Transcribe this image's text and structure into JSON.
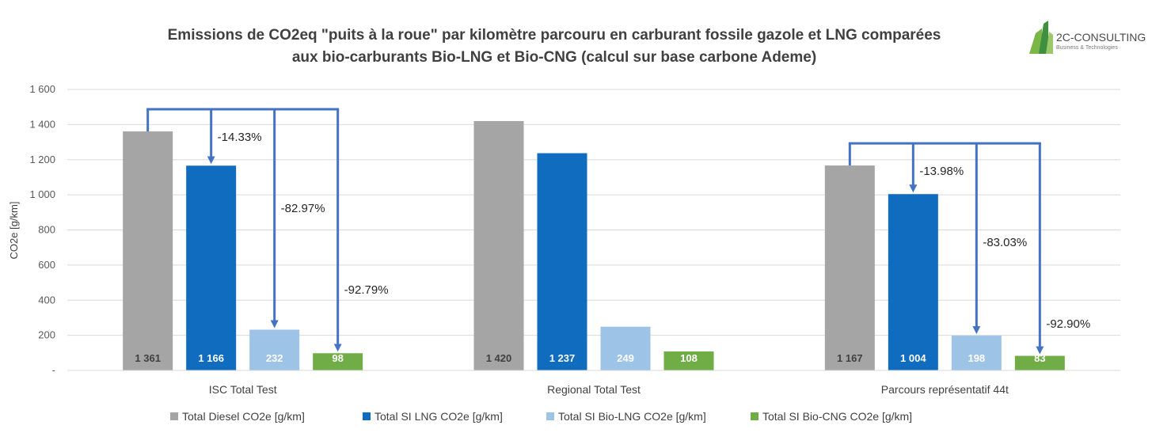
{
  "logo": {
    "name": "2C-CONSULTING",
    "tagline": "Business & Technologies"
  },
  "chart_data": {
    "type": "bar",
    "title_lines": [
      "Emissions de CO2eq \"puits à la roue\" par kilomètre parcouru en carburant fossile gazole et LNG comparées",
      "aux bio-carburants Bio-LNG et Bio-CNG  (calcul sur base carbone Ademe)"
    ],
    "xlabel": "",
    "ylabel": "CO2e [g/km]",
    "ylim": [
      0,
      1600
    ],
    "yticks": [
      {
        "value": 0,
        "label": "-"
      },
      {
        "value": 200,
        "label": "200"
      },
      {
        "value": 400,
        "label": "400"
      },
      {
        "value": 600,
        "label": "600"
      },
      {
        "value": 800,
        "label": "800"
      },
      {
        "value": 1000,
        "label": "1 000"
      },
      {
        "value": 1200,
        "label": "1 200"
      },
      {
        "value": 1400,
        "label": "1 400"
      },
      {
        "value": 1600,
        "label": "1 600"
      }
    ],
    "grid": true,
    "legend_position": "bottom",
    "categories": [
      "ISC Total Test",
      "Regional Total Test",
      "Parcours représentatif 44t"
    ],
    "series": [
      {
        "name": "Total Diesel  CO2e [g/km]",
        "color": "#a5a5a5",
        "label_color": "#404040",
        "values": [
          1361,
          1420,
          1167
        ],
        "labels": [
          "1 361",
          "1 420",
          "1 167"
        ]
      },
      {
        "name": "Total SI LNG CO2e [g/km]",
        "color": "#0f6cbf",
        "label_color": "#ffffff",
        "values": [
          1166,
          1237,
          1004
        ],
        "labels": [
          "1 166",
          "1 237",
          "1 004"
        ]
      },
      {
        "name": "Total SI Bio-LNG CO2e [g/km]",
        "color": "#9dc3e6",
        "label_color": "#ffffff",
        "values": [
          232,
          249,
          198
        ],
        "labels": [
          "232",
          "249",
          "198"
        ]
      },
      {
        "name": "Total SI Bio-CNG  CO2e [g/km]",
        "color": "#70ad47",
        "label_color": "#ffffff",
        "values": [
          98,
          108,
          83
        ],
        "labels": [
          "98",
          "108",
          "83"
        ]
      }
    ],
    "annotations": [
      {
        "category": 0,
        "target_series": 1,
        "label": "-14.33%"
      },
      {
        "category": 0,
        "target_series": 2,
        "label": "-82.97%"
      },
      {
        "category": 0,
        "target_series": 3,
        "label": "-92.79%"
      },
      {
        "category": 2,
        "target_series": 1,
        "label": "-13.98%"
      },
      {
        "category": 2,
        "target_series": 2,
        "label": "-83.03%"
      },
      {
        "category": 2,
        "target_series": 3,
        "label": "-92.90%"
      }
    ],
    "arrow_color": "#4472c4"
  }
}
